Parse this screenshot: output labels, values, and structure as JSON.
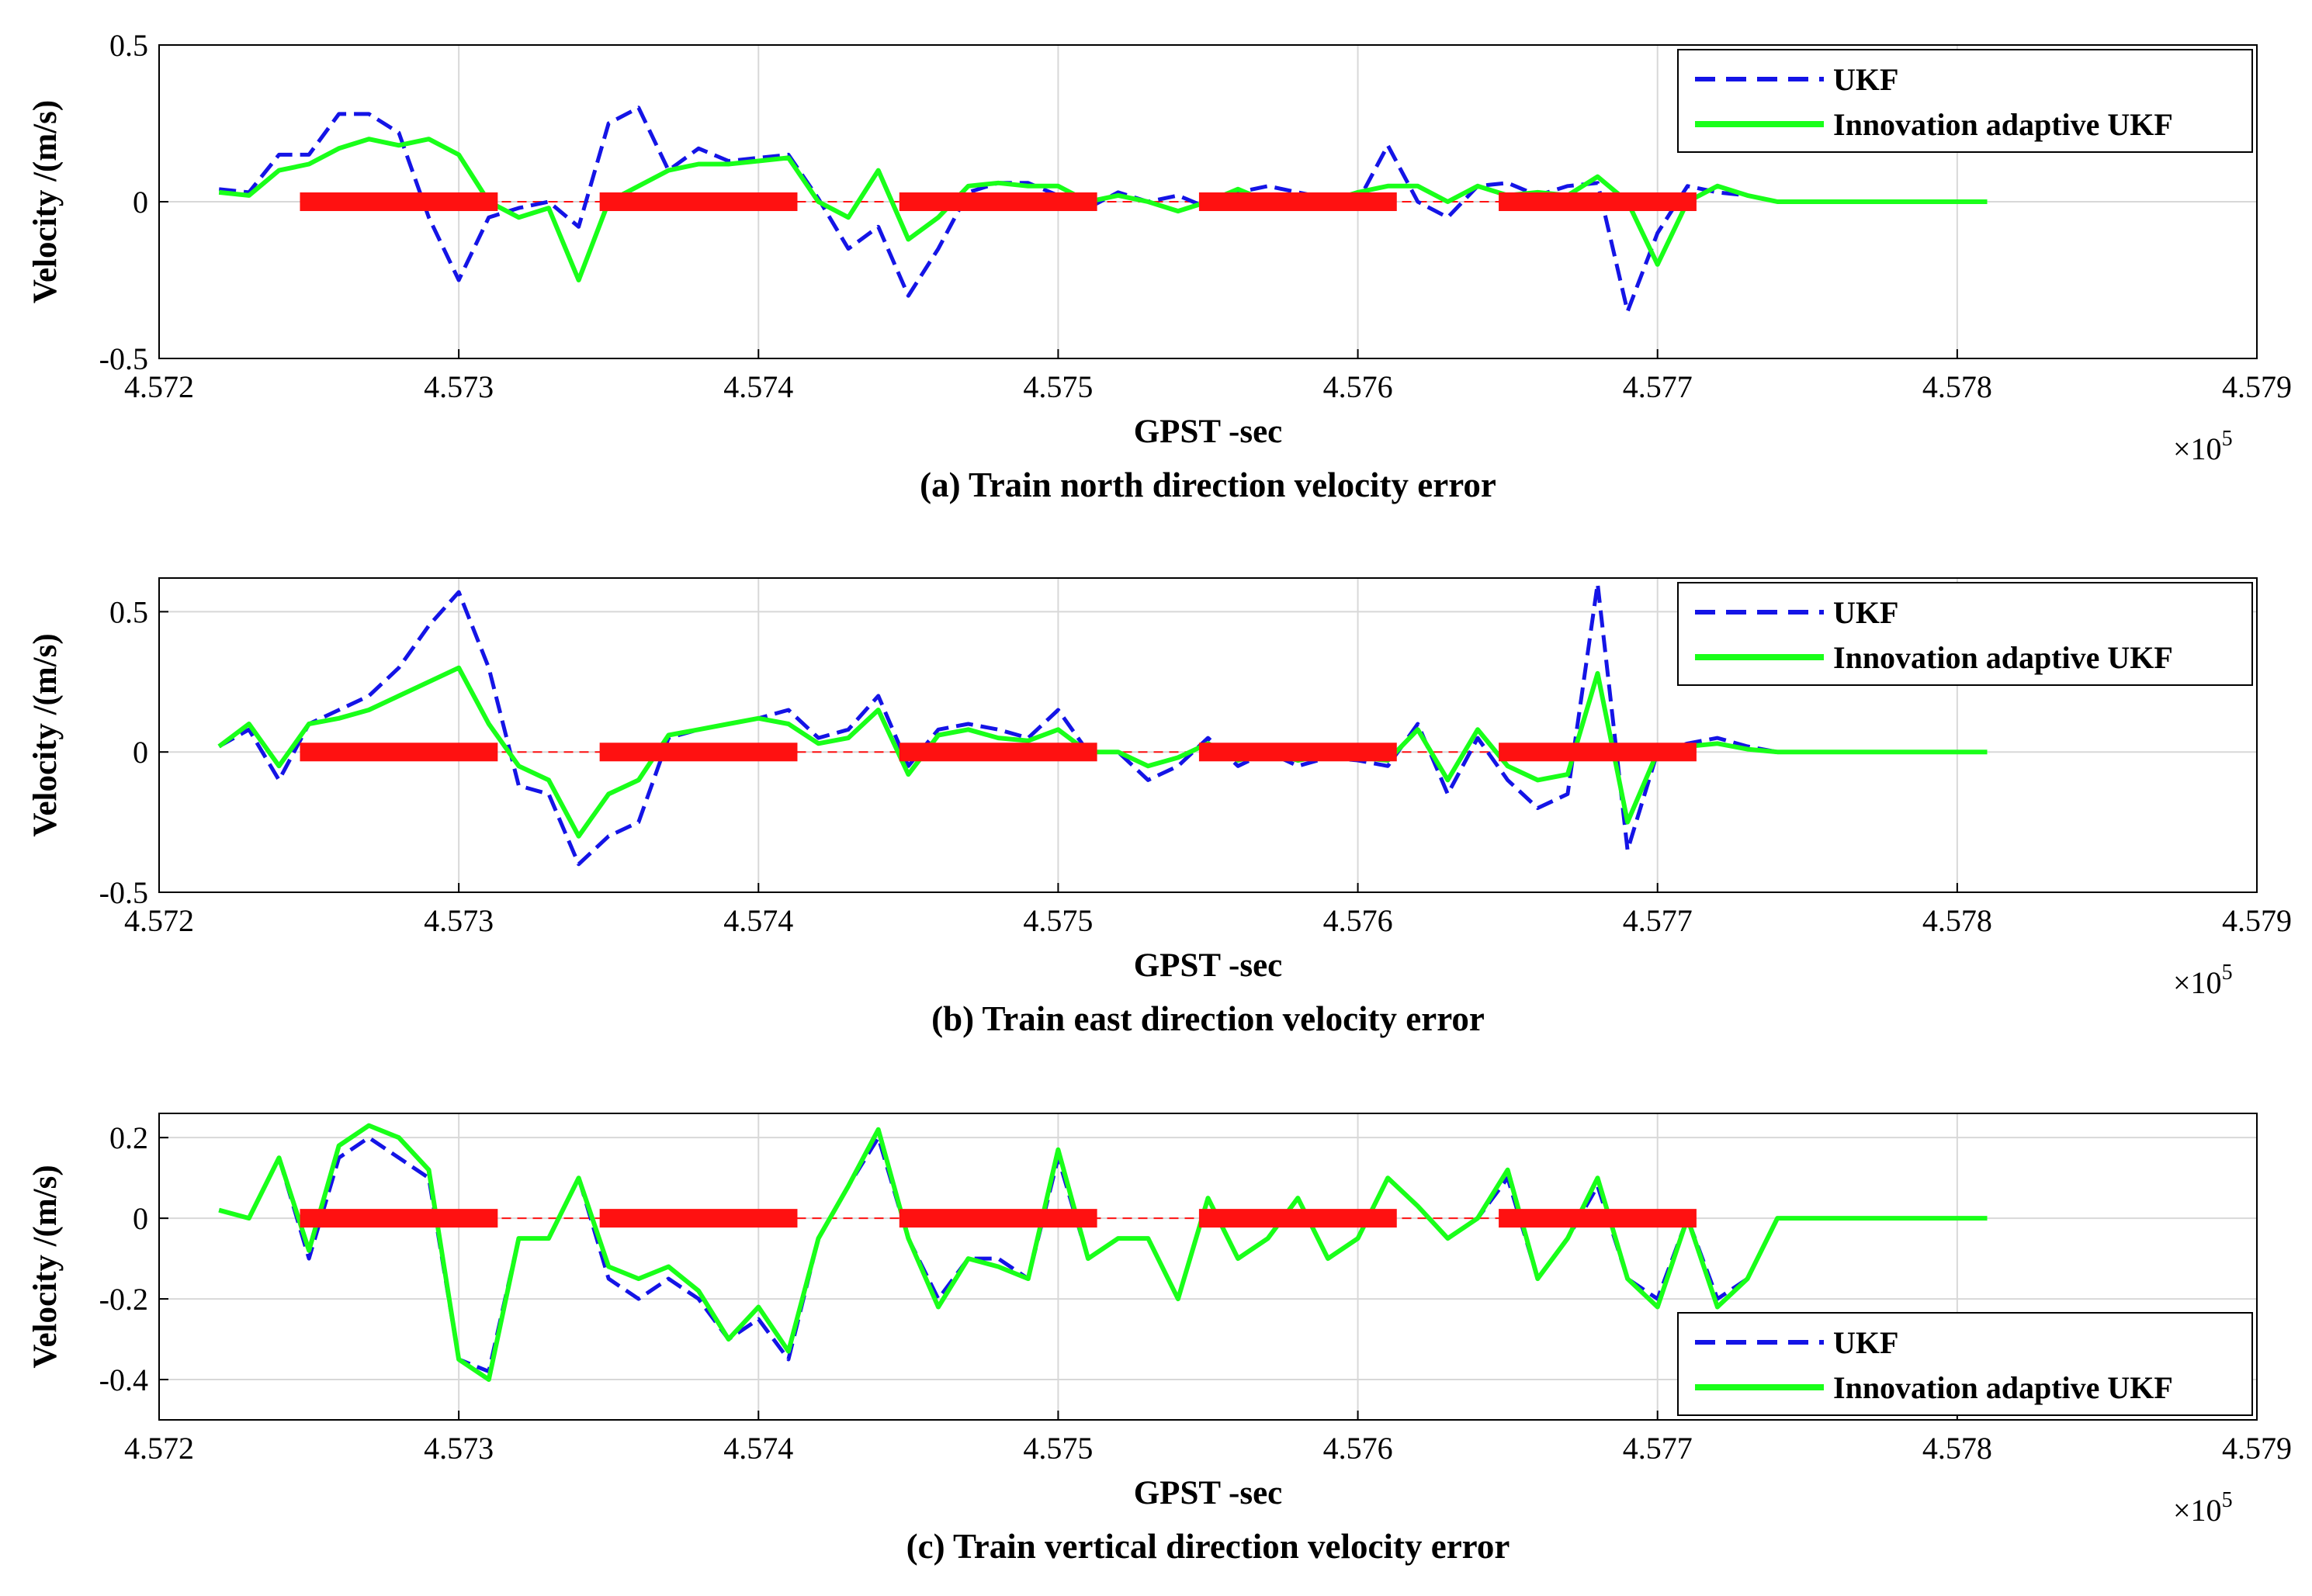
{
  "figure": {
    "colors": {
      "ukf": "#1414e6",
      "adaptive": "#19ff19",
      "outage": "#ff1111",
      "grid": "#d8d8d8",
      "axis": "#000000"
    }
  },
  "chart_data": [
    {
      "type": "line",
      "id": "a",
      "caption": "(a) Train north direction velocity error",
      "xlabel": "GPST -sec",
      "ylabel": "Velocity /(m/s)",
      "x_multiplier": "×10",
      "x_multiplier_exp": "5",
      "xlim": [
        4.572,
        4.579
      ],
      "ylim": [
        -0.5,
        0.5
      ],
      "xticks": [
        4.572,
        4.573,
        4.574,
        4.575,
        4.576,
        4.577,
        4.578,
        4.579
      ],
      "xtick_labels": [
        "4.572",
        "4.573",
        "4.574",
        "4.575",
        "4.576",
        "4.577",
        "4.578",
        "4.579"
      ],
      "yticks": [
        -0.5,
        0,
        0.5
      ],
      "ytick_labels": [
        "-0.5",
        "0",
        "0.5"
      ],
      "legend": {
        "placement": "top-right",
        "entries": [
          "UKF",
          "Innovation adaptive UKF"
        ]
      },
      "outage_segments": [
        [
          4.57247,
          4.57313
        ],
        [
          4.57347,
          4.57413
        ],
        [
          4.57447,
          4.57513
        ],
        [
          4.57547,
          4.57613
        ],
        [
          4.57647,
          4.57713
        ]
      ],
      "series": [
        {
          "name": "UKF",
          "style": "dashed",
          "x": [
            4.5722,
            4.5723,
            4.5724,
            4.5725,
            4.5726,
            4.5727,
            4.5728,
            4.5729,
            4.573,
            4.5731,
            4.5732,
            4.5733,
            4.5734,
            4.5735,
            4.5736,
            4.5737,
            4.5738,
            4.5739,
            4.574,
            4.5741,
            4.5742,
            4.5743,
            4.5744,
            4.5745,
            4.5746,
            4.5747,
            4.5748,
            4.5749,
            4.575,
            4.5751,
            4.5752,
            4.5753,
            4.5754,
            4.5755,
            4.5756,
            4.5757,
            4.5758,
            4.5759,
            4.576,
            4.5761,
            4.5762,
            4.5763,
            4.5764,
            4.5765,
            4.5766,
            4.5767,
            4.5768,
            4.5769,
            4.577,
            4.5771,
            4.5772,
            4.5773,
            4.5774,
            4.5775,
            4.5776,
            4.5777,
            4.5778,
            4.5781
          ],
          "y": [
            0.04,
            0.03,
            0.15,
            0.15,
            0.28,
            0.28,
            0.22,
            -0.05,
            -0.25,
            -0.05,
            -0.02,
            0.0,
            -0.08,
            0.25,
            0.3,
            0.1,
            0.17,
            0.13,
            0.14,
            0.15,
            0.01,
            -0.15,
            -0.08,
            -0.3,
            -0.15,
            0.03,
            0.06,
            0.06,
            0.02,
            -0.02,
            0.03,
            0.0,
            0.02,
            -0.02,
            0.03,
            0.05,
            0.03,
            0.01,
            0.0,
            0.18,
            0.0,
            -0.05,
            0.05,
            0.06,
            0.02,
            0.05,
            0.06,
            -0.35,
            -0.1,
            0.05,
            0.03,
            0.02,
            0.0,
            0.0,
            0.0,
            0.0,
            0.0,
            0.0
          ]
        },
        {
          "name": "Innovation adaptive UKF",
          "style": "solid",
          "x": [
            4.5722,
            4.5723,
            4.5724,
            4.5725,
            4.5726,
            4.5727,
            4.5728,
            4.5729,
            4.573,
            4.5731,
            4.5732,
            4.5733,
            4.5734,
            4.5735,
            4.5736,
            4.5737,
            4.5738,
            4.5739,
            4.574,
            4.5741,
            4.5742,
            4.5743,
            4.5744,
            4.5745,
            4.5746,
            4.5747,
            4.5748,
            4.5749,
            4.575,
            4.5751,
            4.5752,
            4.5753,
            4.5754,
            4.5755,
            4.5756,
            4.5757,
            4.5758,
            4.5759,
            4.576,
            4.5761,
            4.5762,
            4.5763,
            4.5764,
            4.5765,
            4.5766,
            4.5767,
            4.5768,
            4.5769,
            4.577,
            4.5771,
            4.5772,
            4.5773,
            4.5774,
            4.5775,
            4.5776,
            4.5777,
            4.5778,
            4.5781
          ],
          "y": [
            0.03,
            0.02,
            0.1,
            0.12,
            0.17,
            0.2,
            0.18,
            0.2,
            0.15,
            0.0,
            -0.05,
            -0.02,
            -0.25,
            0.0,
            0.05,
            0.1,
            0.12,
            0.12,
            0.13,
            0.14,
            0.0,
            -0.05,
            0.1,
            -0.12,
            -0.05,
            0.05,
            0.06,
            0.05,
            0.05,
            0.0,
            0.02,
            0.0,
            -0.03,
            0.0,
            0.04,
            0.0,
            0.01,
            0.0,
            0.03,
            0.05,
            0.05,
            0.0,
            0.05,
            0.02,
            0.03,
            0.02,
            0.08,
            0.0,
            -0.2,
            0.0,
            0.05,
            0.02,
            0.0,
            0.0,
            0.0,
            0.0,
            0.0,
            0.0
          ]
        }
      ]
    },
    {
      "type": "line",
      "id": "b",
      "caption": "(b) Train east direction velocity error",
      "xlabel": "GPST -sec",
      "ylabel": "Velocity /(m/s)",
      "x_multiplier": "×10",
      "x_multiplier_exp": "5",
      "xlim": [
        4.572,
        4.579
      ],
      "ylim": [
        -0.5,
        0.62
      ],
      "xticks": [
        4.572,
        4.573,
        4.574,
        4.575,
        4.576,
        4.577,
        4.578,
        4.579
      ],
      "xtick_labels": [
        "4.572",
        "4.573",
        "4.574",
        "4.575",
        "4.576",
        "4.577",
        "4.578",
        "4.579"
      ],
      "yticks": [
        -0.5,
        0,
        0.5
      ],
      "ytick_labels": [
        "-0.5",
        "0",
        "0.5"
      ],
      "legend": {
        "placement": "top-right",
        "entries": [
          "UKF",
          "Innovation adaptive UKF"
        ]
      },
      "outage_segments": [
        [
          4.57247,
          4.57313
        ],
        [
          4.57347,
          4.57413
        ],
        [
          4.57447,
          4.57513
        ],
        [
          4.57547,
          4.57613
        ],
        [
          4.57647,
          4.57713
        ]
      ],
      "series": [
        {
          "name": "UKF",
          "style": "dashed",
          "x": [
            4.5722,
            4.5723,
            4.5724,
            4.5725,
            4.5726,
            4.5727,
            4.5728,
            4.5729,
            4.573,
            4.5731,
            4.5732,
            4.5733,
            4.5734,
            4.5735,
            4.5736,
            4.5737,
            4.5738,
            4.5739,
            4.574,
            4.5741,
            4.5742,
            4.5743,
            4.5744,
            4.5745,
            4.5746,
            4.5747,
            4.5748,
            4.5749,
            4.575,
            4.5751,
            4.5752,
            4.5753,
            4.5754,
            4.5755,
            4.5756,
            4.5757,
            4.5758,
            4.5759,
            4.576,
            4.5761,
            4.5762,
            4.5763,
            4.5764,
            4.5765,
            4.5766,
            4.5767,
            4.5768,
            4.5769,
            4.577,
            4.5771,
            4.5772,
            4.5773,
            4.5774,
            4.5775,
            4.5776,
            4.5777,
            4.5778,
            4.5781
          ],
          "y": [
            0.02,
            0.08,
            -0.1,
            0.1,
            0.15,
            0.2,
            0.3,
            0.45,
            0.57,
            0.3,
            -0.12,
            -0.15,
            -0.4,
            -0.3,
            -0.25,
            0.05,
            0.08,
            0.1,
            0.12,
            0.15,
            0.05,
            0.08,
            0.2,
            -0.05,
            0.08,
            0.1,
            0.08,
            0.05,
            0.15,
            0.0,
            0.0,
            -0.1,
            -0.05,
            0.05,
            -0.05,
            0.0,
            -0.05,
            -0.02,
            -0.03,
            -0.05,
            0.1,
            -0.15,
            0.05,
            -0.1,
            -0.2,
            -0.15,
            0.6,
            -0.35,
            0.0,
            0.03,
            0.05,
            0.02,
            0.0,
            0.0,
            0.0,
            0.0,
            0.0,
            0.0
          ]
        },
        {
          "name": "Innovation adaptive UKF",
          "style": "solid",
          "x": [
            4.5722,
            4.5723,
            4.5724,
            4.5725,
            4.5726,
            4.5727,
            4.5728,
            4.5729,
            4.573,
            4.5731,
            4.5732,
            4.5733,
            4.5734,
            4.5735,
            4.5736,
            4.5737,
            4.5738,
            4.5739,
            4.574,
            4.5741,
            4.5742,
            4.5743,
            4.5744,
            4.5745,
            4.5746,
            4.5747,
            4.5748,
            4.5749,
            4.575,
            4.5751,
            4.5752,
            4.5753,
            4.5754,
            4.5755,
            4.5756,
            4.5757,
            4.5758,
            4.5759,
            4.576,
            4.5761,
            4.5762,
            4.5763,
            4.5764,
            4.5765,
            4.5766,
            4.5767,
            4.5768,
            4.5769,
            4.577,
            4.5771,
            4.5772,
            4.5773,
            4.5774,
            4.5775,
            4.5776,
            4.5777,
            4.5778,
            4.5781
          ],
          "y": [
            0.02,
            0.1,
            -0.05,
            0.1,
            0.12,
            0.15,
            0.2,
            0.25,
            0.3,
            0.1,
            -0.05,
            -0.1,
            -0.3,
            -0.15,
            -0.1,
            0.06,
            0.08,
            0.1,
            0.12,
            0.1,
            0.03,
            0.05,
            0.15,
            -0.08,
            0.06,
            0.08,
            0.05,
            0.04,
            0.08,
            0.0,
            0.0,
            -0.05,
            -0.02,
            0.03,
            -0.03,
            0.0,
            -0.03,
            -0.01,
            -0.02,
            -0.03,
            0.08,
            -0.1,
            0.08,
            -0.05,
            -0.1,
            -0.08,
            0.28,
            -0.25,
            0.0,
            0.02,
            0.03,
            0.01,
            0.0,
            0.0,
            0.0,
            0.0,
            0.0,
            0.0
          ]
        }
      ]
    },
    {
      "type": "line",
      "id": "c",
      "caption": "(c) Train vertical direction velocity error",
      "xlabel": "GPST -sec",
      "ylabel": "Velocity /(m/s)",
      "x_multiplier": "×10",
      "x_multiplier_exp": "5",
      "xlim": [
        4.572,
        4.579
      ],
      "ylim": [
        -0.5,
        0.26
      ],
      "xticks": [
        4.572,
        4.573,
        4.574,
        4.575,
        4.576,
        4.577,
        4.578,
        4.579
      ],
      "xtick_labels": [
        "4.572",
        "4.573",
        "4.574",
        "4.575",
        "4.576",
        "4.577",
        "4.578",
        "4.579"
      ],
      "yticks": [
        -0.4,
        -0.2,
        0,
        0.2
      ],
      "ytick_labels": [
        "-0.4",
        "-0.2",
        "0",
        "0.2"
      ],
      "legend": {
        "placement": "bottom-right",
        "entries": [
          "UKF",
          "Innovation adaptive UKF"
        ]
      },
      "outage_segments": [
        [
          4.57247,
          4.57313
        ],
        [
          4.57347,
          4.57413
        ],
        [
          4.57447,
          4.57513
        ],
        [
          4.57547,
          4.57613
        ],
        [
          4.57647,
          4.57713
        ]
      ],
      "series": [
        {
          "name": "UKF",
          "style": "dashed",
          "x": [
            4.5722,
            4.5723,
            4.5724,
            4.5725,
            4.5726,
            4.5727,
            4.5728,
            4.5729,
            4.573,
            4.5731,
            4.5732,
            4.5733,
            4.5734,
            4.5735,
            4.5736,
            4.5737,
            4.5738,
            4.5739,
            4.574,
            4.5741,
            4.5742,
            4.5743,
            4.5744,
            4.5745,
            4.5746,
            4.5747,
            4.5748,
            4.5749,
            4.575,
            4.5751,
            4.5752,
            4.5753,
            4.5754,
            4.5755,
            4.5756,
            4.5757,
            4.5758,
            4.5759,
            4.576,
            4.5761,
            4.5762,
            4.5763,
            4.5764,
            4.5765,
            4.5766,
            4.5767,
            4.5768,
            4.5769,
            4.577,
            4.5771,
            4.5772,
            4.5773,
            4.5774,
            4.5775,
            4.5776,
            4.5777,
            4.5778,
            4.5781
          ],
          "y": [
            0.02,
            0.0,
            0.15,
            -0.1,
            0.15,
            0.2,
            0.15,
            0.1,
            -0.35,
            -0.38,
            -0.05,
            -0.05,
            0.1,
            -0.15,
            -0.2,
            -0.15,
            -0.2,
            -0.3,
            -0.25,
            -0.35,
            -0.05,
            0.08,
            0.2,
            -0.05,
            -0.2,
            -0.1,
            -0.1,
            -0.15,
            0.15,
            -0.1,
            -0.05,
            -0.05,
            -0.2,
            0.05,
            -0.1,
            -0.05,
            0.05,
            -0.1,
            -0.05,
            0.1,
            0.03,
            -0.05,
            0.0,
            0.1,
            -0.15,
            -0.05,
            0.08,
            -0.15,
            -0.2,
            0.0,
            -0.2,
            -0.15,
            0.0,
            0.0,
            0.0,
            0.0,
            0.0,
            0.0
          ]
        },
        {
          "name": "Innovation adaptive UKF",
          "style": "solid",
          "x": [
            4.5722,
            4.5723,
            4.5724,
            4.5725,
            4.5726,
            4.5727,
            4.5728,
            4.5729,
            4.573,
            4.5731,
            4.5732,
            4.5733,
            4.5734,
            4.5735,
            4.5736,
            4.5737,
            4.5738,
            4.5739,
            4.574,
            4.5741,
            4.5742,
            4.5743,
            4.5744,
            4.5745,
            4.5746,
            4.5747,
            4.5748,
            4.5749,
            4.575,
            4.5751,
            4.5752,
            4.5753,
            4.5754,
            4.5755,
            4.5756,
            4.5757,
            4.5758,
            4.5759,
            4.576,
            4.5761,
            4.5762,
            4.5763,
            4.5764,
            4.5765,
            4.5766,
            4.5767,
            4.5768,
            4.5769,
            4.577,
            4.5771,
            4.5772,
            4.5773,
            4.5774,
            4.5775,
            4.5776,
            4.5777,
            4.5778,
            4.5781
          ],
          "y": [
            0.02,
            0.0,
            0.15,
            -0.08,
            0.18,
            0.23,
            0.2,
            0.12,
            -0.35,
            -0.4,
            -0.05,
            -0.05,
            0.1,
            -0.12,
            -0.15,
            -0.12,
            -0.18,
            -0.3,
            -0.22,
            -0.33,
            -0.05,
            0.08,
            0.22,
            -0.05,
            -0.22,
            -0.1,
            -0.12,
            -0.15,
            0.17,
            -0.1,
            -0.05,
            -0.05,
            -0.2,
            0.05,
            -0.1,
            -0.05,
            0.05,
            -0.1,
            -0.05,
            0.1,
            0.03,
            -0.05,
            0.0,
            0.12,
            -0.15,
            -0.05,
            0.1,
            -0.15,
            -0.22,
            0.0,
            -0.22,
            -0.15,
            0.0,
            0.0,
            0.0,
            0.0,
            0.0,
            0.0
          ]
        }
      ]
    }
  ]
}
